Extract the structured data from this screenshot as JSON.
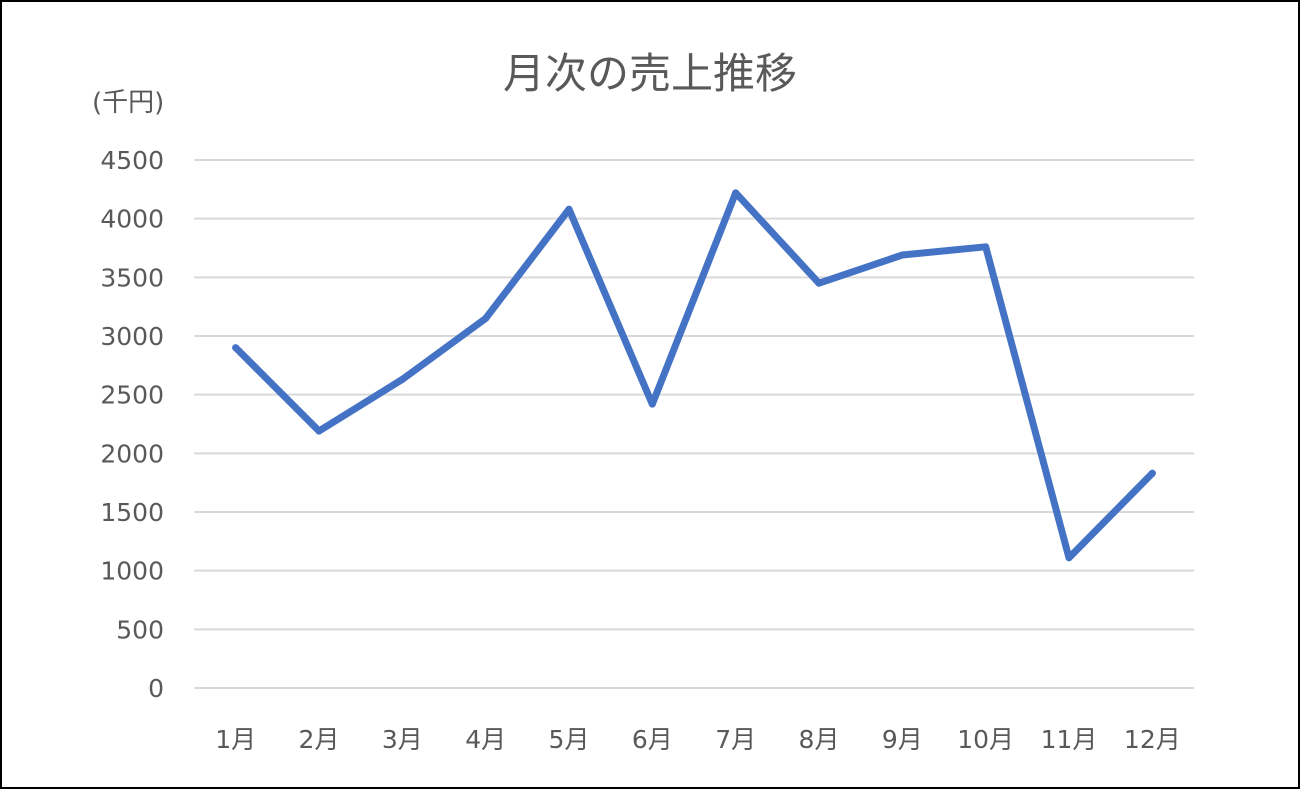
{
  "chart_data": {
    "type": "line",
    "title": "月次の売上推移",
    "unit_label": "(千円)",
    "xlabel": "",
    "ylabel": "",
    "categories": [
      "1月",
      "2月",
      "3月",
      "4月",
      "5月",
      "6月",
      "7月",
      "8月",
      "9月",
      "10月",
      "11月",
      "12月"
    ],
    "series": [
      {
        "values": [
          2900,
          2190,
          2630,
          3150,
          4080,
          2420,
          4220,
          3450,
          3690,
          3760,
          1110,
          1830
        ]
      }
    ],
    "ylim": [
      0,
      4500
    ],
    "yticks": [
      0,
      500,
      1000,
      1500,
      2000,
      2500,
      3000,
      3500,
      4000,
      4500
    ],
    "grid": true,
    "legend": "none",
    "colors": {
      "series": "#4472c4",
      "grid": "#d9d9d9",
      "text": "#595959",
      "border": "#000000"
    }
  }
}
